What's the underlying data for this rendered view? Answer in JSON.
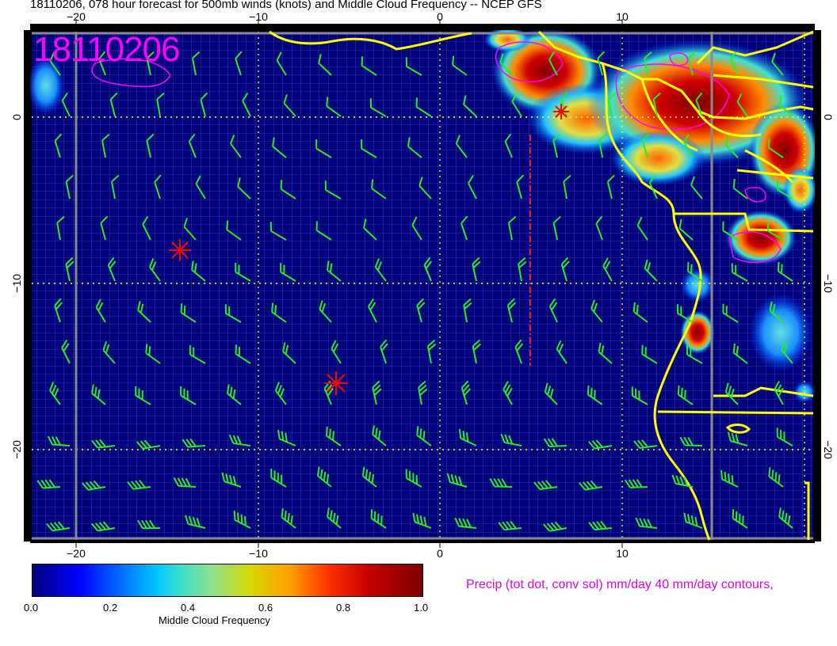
{
  "title": "18110206, 078 hour forecast for 500mb winds (knots) and Middle Cloud Frequency -- NCEP GFS",
  "stamp": "18110206",
  "precip_note": "Precip (tot dot, conv sol) mm/day 40 mm/day contours,",
  "axis": {
    "top_labels": [
      "−20",
      "−10",
      "0",
      "10"
    ],
    "bottom_labels": [
      "−20",
      "−10",
      "0",
      "10"
    ],
    "left_labels": [
      "0",
      "−10",
      "−20"
    ],
    "right_labels": [
      "0",
      "−10",
      "−20"
    ]
  },
  "colorbar": {
    "title": "Middle Cloud Frequency",
    "ticks": [
      "0.0",
      "0.2",
      "0.4",
      "0.6",
      "0.8",
      "1.0"
    ]
  },
  "colors": {
    "ocean": "#00007f",
    "grid": "#5a6ab4",
    "coast": "#ffff00",
    "barb": "#22ee22",
    "precip": "#ff00ff",
    "storm": "#ff0000",
    "dotted_grid": "#ffff00"
  },
  "markers": [
    "storm-symbol",
    "storm-symbol",
    "storm-symbol"
  ]
}
